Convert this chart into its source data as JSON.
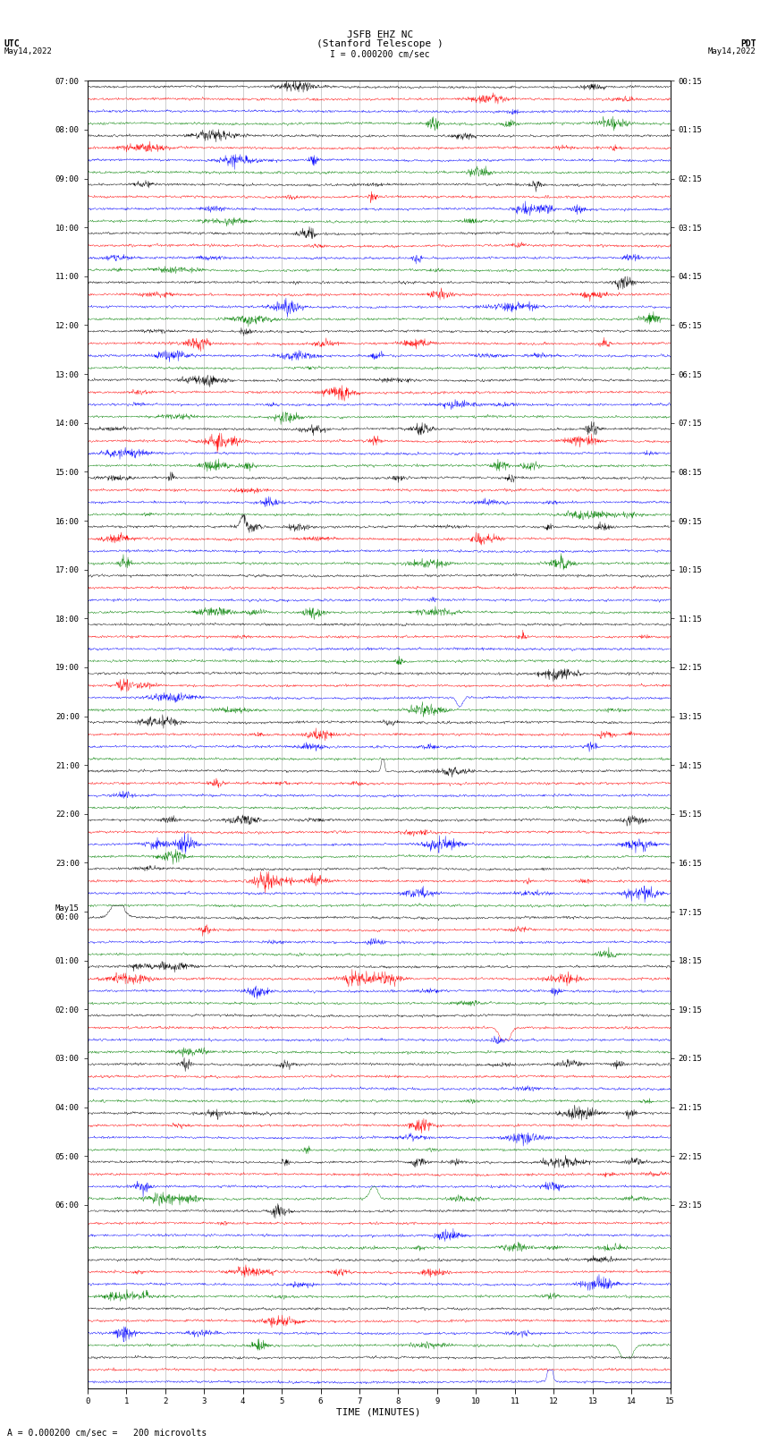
{
  "title_line1": "JSFB EHZ NC",
  "title_line2": "(Stanford Telescope )",
  "scale_label": "I = 0.000200 cm/sec",
  "label_utc": "UTC",
  "label_pdt": "PDT",
  "date_left": "May14,2022",
  "date_right": "May14,2022",
  "footer_scale": "A",
  "footer_text": " = 0.000200 cm/sec =   200 microvolts",
  "xlabel": "TIME (MINUTES)",
  "utc_labels": [
    "07:00",
    "",
    "",
    "",
    "08:00",
    "",
    "",
    "",
    "09:00",
    "",
    "",
    "",
    "10:00",
    "",
    "",
    "",
    "11:00",
    "",
    "",
    "",
    "12:00",
    "",
    "",
    "",
    "13:00",
    "",
    "",
    "",
    "14:00",
    "",
    "",
    "",
    "15:00",
    "",
    "",
    "",
    "16:00",
    "",
    "",
    "",
    "17:00",
    "",
    "",
    "",
    "18:00",
    "",
    "",
    "",
    "19:00",
    "",
    "",
    "",
    "20:00",
    "",
    "",
    "",
    "21:00",
    "",
    "",
    "",
    "22:00",
    "",
    "",
    "",
    "23:00",
    "",
    "",
    "",
    "May15\n00:00",
    "",
    "",
    "",
    "01:00",
    "",
    "",
    "",
    "02:00",
    "",
    "",
    "",
    "03:00",
    "",
    "",
    "",
    "04:00",
    "",
    "",
    "",
    "05:00",
    "",
    "",
    "",
    "06:00",
    "",
    ""
  ],
  "pdt_labels": [
    "00:15",
    "",
    "",
    "",
    "01:15",
    "",
    "",
    "",
    "02:15",
    "",
    "",
    "",
    "03:15",
    "",
    "",
    "",
    "04:15",
    "",
    "",
    "",
    "05:15",
    "",
    "",
    "",
    "06:15",
    "",
    "",
    "",
    "07:15",
    "",
    "",
    "",
    "08:15",
    "",
    "",
    "",
    "09:15",
    "",
    "",
    "",
    "10:15",
    "",
    "",
    "",
    "11:15",
    "",
    "",
    "",
    "12:15",
    "",
    "",
    "",
    "13:15",
    "",
    "",
    "",
    "14:15",
    "",
    "",
    "",
    "15:15",
    "",
    "",
    "",
    "16:15",
    "",
    "",
    "",
    "17:15",
    "",
    "",
    "",
    "18:15",
    "",
    "",
    "",
    "19:15",
    "",
    "",
    "",
    "20:15",
    "",
    "",
    "",
    "21:15",
    "",
    "",
    "",
    "22:15",
    "",
    "",
    "",
    "23:15",
    ""
  ],
  "colors": [
    "black",
    "red",
    "blue",
    "green"
  ],
  "n_rows": 107,
  "n_samples": 1800,
  "amplitude_scale": 0.28,
  "bg_color": "white",
  "trace_linewidth": 0.3,
  "grid_color": "#aaaaaa",
  "xmin": 0,
  "xmax": 15,
  "title_fontsize": 8,
  "label_fontsize": 7,
  "tick_fontsize": 6.5
}
